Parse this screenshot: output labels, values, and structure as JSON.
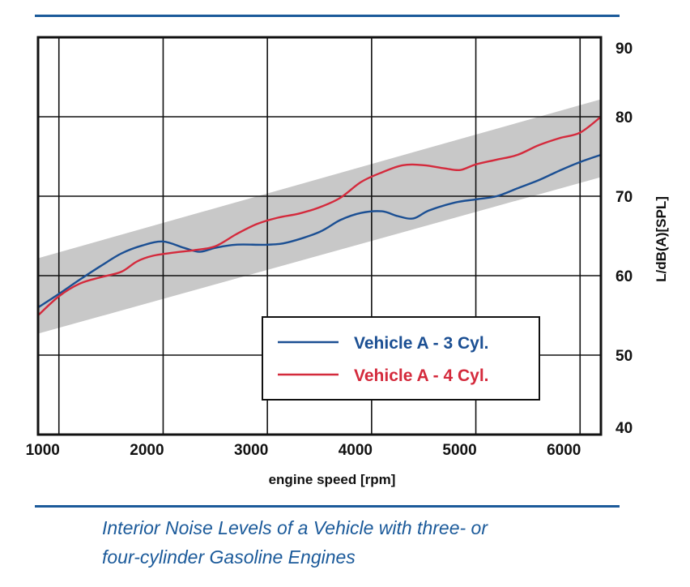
{
  "chart_data": {
    "type": "line",
    "title": "",
    "xlabel": "engine speed [rpm]",
    "ylabel": "L/dB(A)[SPL]",
    "xlim": [
      800,
      6200
    ],
    "ylim": [
      40,
      90
    ],
    "x_ticks": [
      "1000",
      "2000",
      "3000",
      "4000",
      "5000",
      "6000"
    ],
    "y_ticks": [
      "40",
      "50",
      "60",
      "70",
      "80",
      "90"
    ],
    "grid": true,
    "band": {
      "lower": [
        [
          800,
          52.7
        ],
        [
          6200,
          72.4
        ]
      ],
      "upper": [
        [
          800,
          62.2
        ],
        [
          6200,
          82.2
        ]
      ],
      "color": "#c8c8c8"
    },
    "series": [
      {
        "name": "Vehicle A - 3 Cyl.",
        "color": "#1b4f93",
        "points": [
          [
            800,
            56
          ],
          [
            1000,
            57.7
          ],
          [
            1200,
            59.5
          ],
          [
            1400,
            61.2
          ],
          [
            1600,
            62.8
          ],
          [
            1800,
            63.8
          ],
          [
            2000,
            64.3
          ],
          [
            2200,
            63.5
          ],
          [
            2350,
            63
          ],
          [
            2500,
            63.5
          ],
          [
            2700,
            63.9
          ],
          [
            3000,
            63.9
          ],
          [
            3200,
            64.2
          ],
          [
            3500,
            65.5
          ],
          [
            3700,
            67
          ],
          [
            3900,
            67.9
          ],
          [
            4100,
            68.1
          ],
          [
            4250,
            67.5
          ],
          [
            4400,
            67.2
          ],
          [
            4550,
            68.2
          ],
          [
            4800,
            69.2
          ],
          [
            5000,
            69.6
          ],
          [
            5200,
            70
          ],
          [
            5400,
            71
          ],
          [
            5600,
            72
          ],
          [
            5800,
            73.2
          ],
          [
            6000,
            74.3
          ],
          [
            6200,
            75.2
          ]
        ]
      },
      {
        "name": "Vehicle A - 4 Cyl.",
        "color": "#d42a3c",
        "points": [
          [
            800,
            55
          ],
          [
            1000,
            57.4
          ],
          [
            1200,
            59
          ],
          [
            1400,
            59.8
          ],
          [
            1600,
            60.5
          ],
          [
            1750,
            61.8
          ],
          [
            1900,
            62.5
          ],
          [
            2100,
            62.9
          ],
          [
            2300,
            63.2
          ],
          [
            2500,
            63.7
          ],
          [
            2700,
            65.2
          ],
          [
            2900,
            66.5
          ],
          [
            3100,
            67.3
          ],
          [
            3300,
            67.8
          ],
          [
            3500,
            68.6
          ],
          [
            3700,
            69.8
          ],
          [
            3900,
            71.8
          ],
          [
            4100,
            73
          ],
          [
            4300,
            73.9
          ],
          [
            4500,
            73.9
          ],
          [
            4700,
            73.5
          ],
          [
            4850,
            73.3
          ],
          [
            5000,
            74
          ],
          [
            5200,
            74.6
          ],
          [
            5400,
            75.2
          ],
          [
            5600,
            76.4
          ],
          [
            5800,
            77.3
          ],
          [
            6000,
            78
          ],
          [
            6200,
            80
          ]
        ]
      }
    ],
    "legend": {
      "placement": "bottom-right",
      "entries": [
        "Vehicle A - 3 Cyl.",
        "Vehicle A - 4 Cyl."
      ]
    }
  },
  "caption": {
    "line1": "Interior Noise Levels of a Vehicle with three- or",
    "line2": "four-cylinder Gasoline Engines"
  }
}
